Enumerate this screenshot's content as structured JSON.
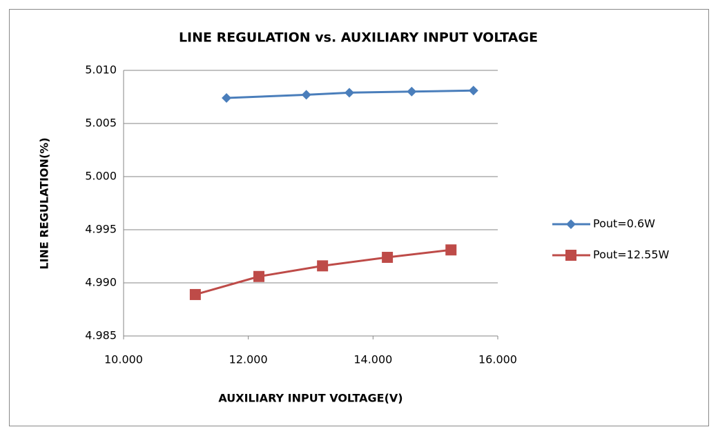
{
  "chart_data": {
    "type": "line",
    "title": "LINE REGULATION vs. AUXILIARY INPUT VOLTAGE",
    "x_label": "AUXILIARY INPUT VOLTAGE(V)",
    "y_label": "LINE REGULATION(%)",
    "xlim": [
      10,
      16
    ],
    "xticks": [
      {
        "value": 10,
        "label": "10.000"
      },
      {
        "value": 12,
        "label": "12.000"
      },
      {
        "value": 14,
        "label": "14.000"
      },
      {
        "value": 16,
        "label": "16.000"
      }
    ],
    "ylim": [
      4.985,
      5.01
    ],
    "yticks": [
      {
        "value": 4.985,
        "label": "4.985"
      },
      {
        "value": 4.99,
        "label": "4.990"
      },
      {
        "value": 4.995,
        "label": "4.995"
      },
      {
        "value": 5.0,
        "label": "5.000"
      },
      {
        "value": 5.005,
        "label": "5.005"
      },
      {
        "value": 5.01,
        "label": "5.010"
      }
    ],
    "grid": true,
    "legend": "right",
    "series": [
      {
        "name": "Pout=0.6W",
        "color": "#4a7ebb",
        "marker": "diamond",
        "x": [
          11.65,
          12.93,
          13.62,
          14.62,
          15.61
        ],
        "values": [
          5.0074,
          5.0077,
          5.0079,
          5.008,
          5.0081
        ]
      },
      {
        "name": "Pout=12.55W",
        "color": "#be4b48",
        "marker": "square",
        "x": [
          11.15,
          12.17,
          13.19,
          14.23,
          15.25
        ],
        "values": [
          4.9889,
          4.9906,
          4.9916,
          4.9924,
          4.9931
        ]
      }
    ]
  }
}
